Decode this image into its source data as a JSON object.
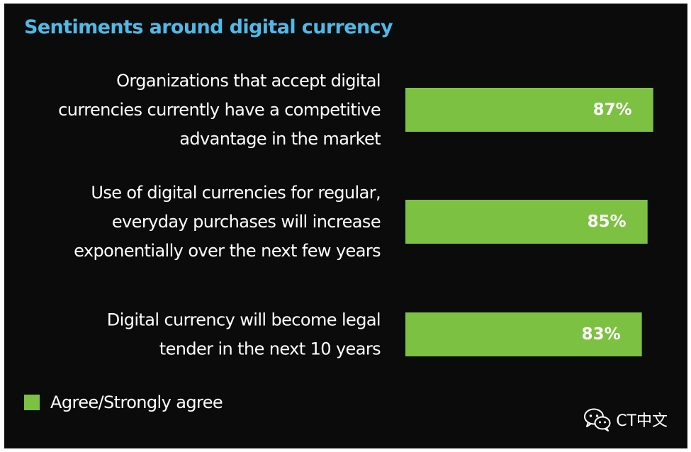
{
  "chart_data": {
    "type": "bar",
    "orientation": "horizontal",
    "title": "Sentiments around digital currency",
    "categories": [
      [
        "Organizations that accept digital",
        "currencies currently have a competitive",
        "advantage in the market"
      ],
      [
        "Use of digital currencies for regular,",
        "everyday purchases will increase",
        "exponentially over the next few years"
      ],
      [
        "Digital currency will become legal",
        "tender in the next 10 years"
      ]
    ],
    "series": [
      {
        "name": "Agree/Strongly agree",
        "values": [
          87,
          85,
          83
        ],
        "data_labels": [
          "87%",
          "85%",
          "83%"
        ]
      }
    ],
    "xlim": [
      0,
      100
    ],
    "grid": false,
    "legend_position": "bottom-left",
    "bar_color": "#7dc142",
    "title_color": "#4fb9e8",
    "background_color": "#0b0b0b"
  },
  "watermark": {
    "icon": "wechat-icon",
    "text": "CT中文"
  }
}
